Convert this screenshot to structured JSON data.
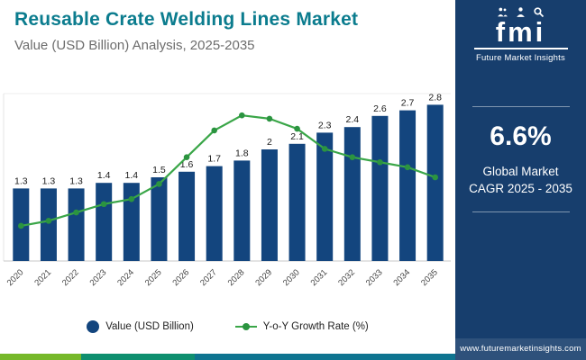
{
  "header": {
    "title": "Reusable Crate Welding Lines Market",
    "subtitle": "Value (USD Billion) Analysis, 2025-2035"
  },
  "logo": {
    "abbr": "fmi",
    "name": "Future Market Insights"
  },
  "panel": {
    "cagr_value": "6.6%",
    "cagr_label_line1": "Global Market",
    "cagr_label_line2": "CAGR 2025 - 2035",
    "website": "www.futuremarketinsights.com",
    "background_color": "#173e6d"
  },
  "legend": {
    "bar": "Value (USD Billion)",
    "line": "Y-o-Y Growth Rate (%)"
  },
  "footer": {
    "segments": [
      {
        "color": "#76b82a",
        "flex": "1"
      },
      {
        "color": "#0f8f6f",
        "flex": "1.4"
      },
      {
        "color": "#0e7490",
        "flex": "3.2"
      }
    ]
  },
  "chart_data": {
    "type": "bar",
    "subtype": "bar+line combo",
    "title": "Reusable Crate Welding Lines Market, Value (USD Billion), 2025-2035",
    "categories": [
      "2020",
      "2021",
      "2022",
      "2023",
      "2024",
      "2025",
      "2026",
      "2027",
      "2028",
      "2029",
      "2030",
      "2031",
      "2032",
      "2033",
      "2034",
      "2035"
    ],
    "series": [
      {
        "name": "Value (USD Billion)",
        "type": "bar",
        "color": "#13457e",
        "values": [
          1.3,
          1.3,
          1.3,
          1.4,
          1.4,
          1.5,
          1.6,
          1.7,
          1.8,
          2.0,
          2.1,
          2.3,
          2.4,
          2.6,
          2.7,
          2.8
        ],
        "labels": [
          "1.3",
          "1.3",
          "1.3",
          "1.4",
          "1.4",
          "1.5",
          "1.6",
          "1.7",
          "1.8",
          "2",
          "2.1",
          "2.3",
          "2.4",
          "2.6",
          "2.7",
          "2.8"
        ]
      },
      {
        "name": "Y-o-Y Growth Rate (%)",
        "type": "line",
        "color": "#3aa648",
        "marker_color": "#2b9440",
        "values": [
          2.1,
          2.4,
          2.9,
          3.4,
          3.7,
          4.6,
          6.2,
          7.8,
          8.7,
          8.5,
          7.9,
          6.7,
          6.2,
          5.9,
          5.6,
          5.0
        ],
        "values_note": "estimated from line position; no value labels shown on chart"
      }
    ],
    "ylim": [
      0,
      3
    ],
    "y2lim": [
      0,
      10
    ],
    "value_axes_hidden": true,
    "grid": false,
    "legend_position": "bottom",
    "xlabel": "",
    "ylabel": ""
  }
}
